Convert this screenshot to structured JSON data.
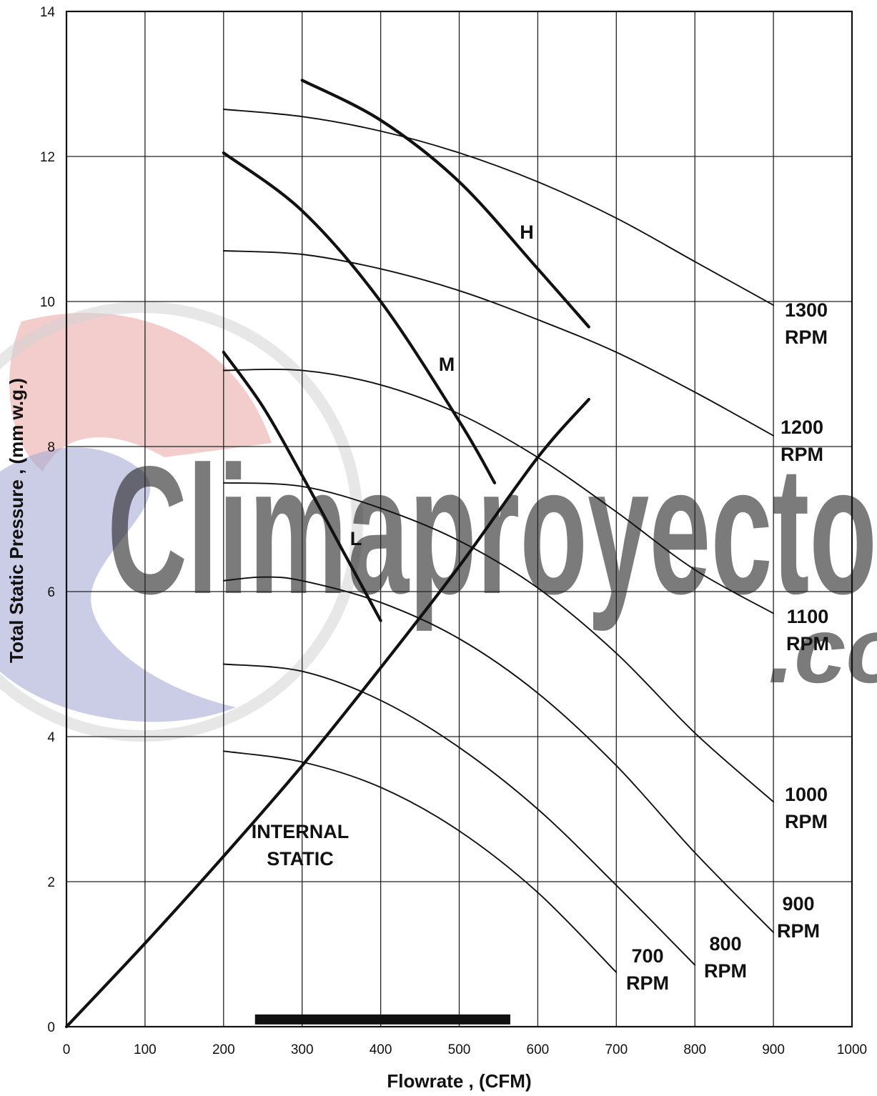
{
  "chart_data": {
    "type": "line",
    "title": "",
    "xlabel": "Flowrate , (CFM)",
    "ylabel": "Total Static Pressure , (mm w.g.)",
    "xlim": [
      0,
      1000
    ],
    "ylim": [
      0,
      14
    ],
    "x_ticks": [
      0,
      100,
      200,
      300,
      400,
      500,
      600,
      700,
      800,
      900,
      1000
    ],
    "y_ticks": [
      0,
      2,
      4,
      6,
      8,
      10,
      12,
      14
    ],
    "grid": true,
    "legend": "none",
    "watermark": {
      "text": "Climaproyecto",
      "suffix": ".co",
      "colors": [
        "#e9a2a2",
        "#a7abd4",
        "#d4d4d4"
      ]
    },
    "range_bar": {
      "x_start": 240,
      "x_end": 565,
      "y": 0.1
    },
    "series": [
      {
        "name": "1300 RPM",
        "label_lines": [
          "1300",
          "RPM"
        ],
        "weight": "thin",
        "x": [
          200,
          300,
          400,
          500,
          600,
          700,
          800,
          900
        ],
        "y": [
          12.65,
          12.55,
          12.35,
          12.05,
          11.65,
          11.15,
          10.55,
          9.95
        ]
      },
      {
        "name": "1200 RPM",
        "label_lines": [
          "1200",
          "RPM"
        ],
        "weight": "thin",
        "x": [
          200,
          300,
          400,
          500,
          600,
          700,
          800,
          900
        ],
        "y": [
          10.7,
          10.65,
          10.45,
          10.15,
          9.75,
          9.3,
          8.75,
          8.15
        ]
      },
      {
        "name": "1100 RPM",
        "label_lines": [
          "1100",
          "RPM"
        ],
        "weight": "thin",
        "x": [
          200,
          300,
          400,
          500,
          600,
          700,
          800,
          900
        ],
        "y": [
          9.05,
          9.05,
          8.85,
          8.45,
          7.85,
          7.1,
          6.3,
          5.7
        ]
      },
      {
        "name": "1000 RPM",
        "label_lines": [
          "1000",
          "RPM"
        ],
        "weight": "thin",
        "x": [
          200,
          300,
          400,
          500,
          600,
          700,
          800,
          900
        ],
        "y": [
          7.5,
          7.45,
          7.15,
          6.7,
          6.05,
          5.15,
          4.05,
          3.1
        ]
      },
      {
        "name": "900 RPM",
        "label_lines": [
          "900",
          "RPM"
        ],
        "weight": "thin",
        "x": [
          200,
          250,
          300,
          400,
          500,
          600,
          700,
          800,
          900
        ],
        "y": [
          6.15,
          6.2,
          6.15,
          5.85,
          5.35,
          4.6,
          3.6,
          2.4,
          1.3
        ]
      },
      {
        "name": "800 RPM",
        "label_lines": [
          "800",
          "RPM"
        ],
        "weight": "thin",
        "x": [
          200,
          300,
          400,
          500,
          600,
          700,
          800
        ],
        "y": [
          5.0,
          4.9,
          4.5,
          3.85,
          3.0,
          1.95,
          0.85
        ]
      },
      {
        "name": "700 RPM",
        "label_lines": [
          "700",
          "RPM"
        ],
        "weight": "thin",
        "x": [
          200,
          300,
          400,
          500,
          600,
          700
        ],
        "y": [
          3.8,
          3.65,
          3.3,
          2.7,
          1.85,
          0.75
        ]
      },
      {
        "name": "H",
        "label_lines": [
          "H"
        ],
        "weight": "thick",
        "x": [
          300,
          400,
          500,
          600,
          665
        ],
        "y": [
          13.05,
          12.5,
          11.65,
          10.45,
          9.65
        ]
      },
      {
        "name": "M",
        "label_lines": [
          "M"
        ],
        "weight": "thick",
        "x": [
          200,
          300,
          400,
          500,
          545
        ],
        "y": [
          12.05,
          11.25,
          10.0,
          8.35,
          7.5
        ]
      },
      {
        "name": "L",
        "label_lines": [
          "L"
        ],
        "weight": "thick",
        "x": [
          200,
          250,
          300,
          350,
          400
        ],
        "y": [
          9.3,
          8.55,
          7.6,
          6.6,
          5.6
        ]
      },
      {
        "name": "INTERNAL STATIC",
        "label_lines": [
          "INTERNAL",
          "STATIC"
        ],
        "weight": "thick",
        "x": [
          0,
          100,
          200,
          300,
          400,
          500,
          600,
          665
        ],
        "y": [
          0,
          1.15,
          2.35,
          3.6,
          4.95,
          6.35,
          7.85,
          8.65
        ]
      }
    ]
  }
}
